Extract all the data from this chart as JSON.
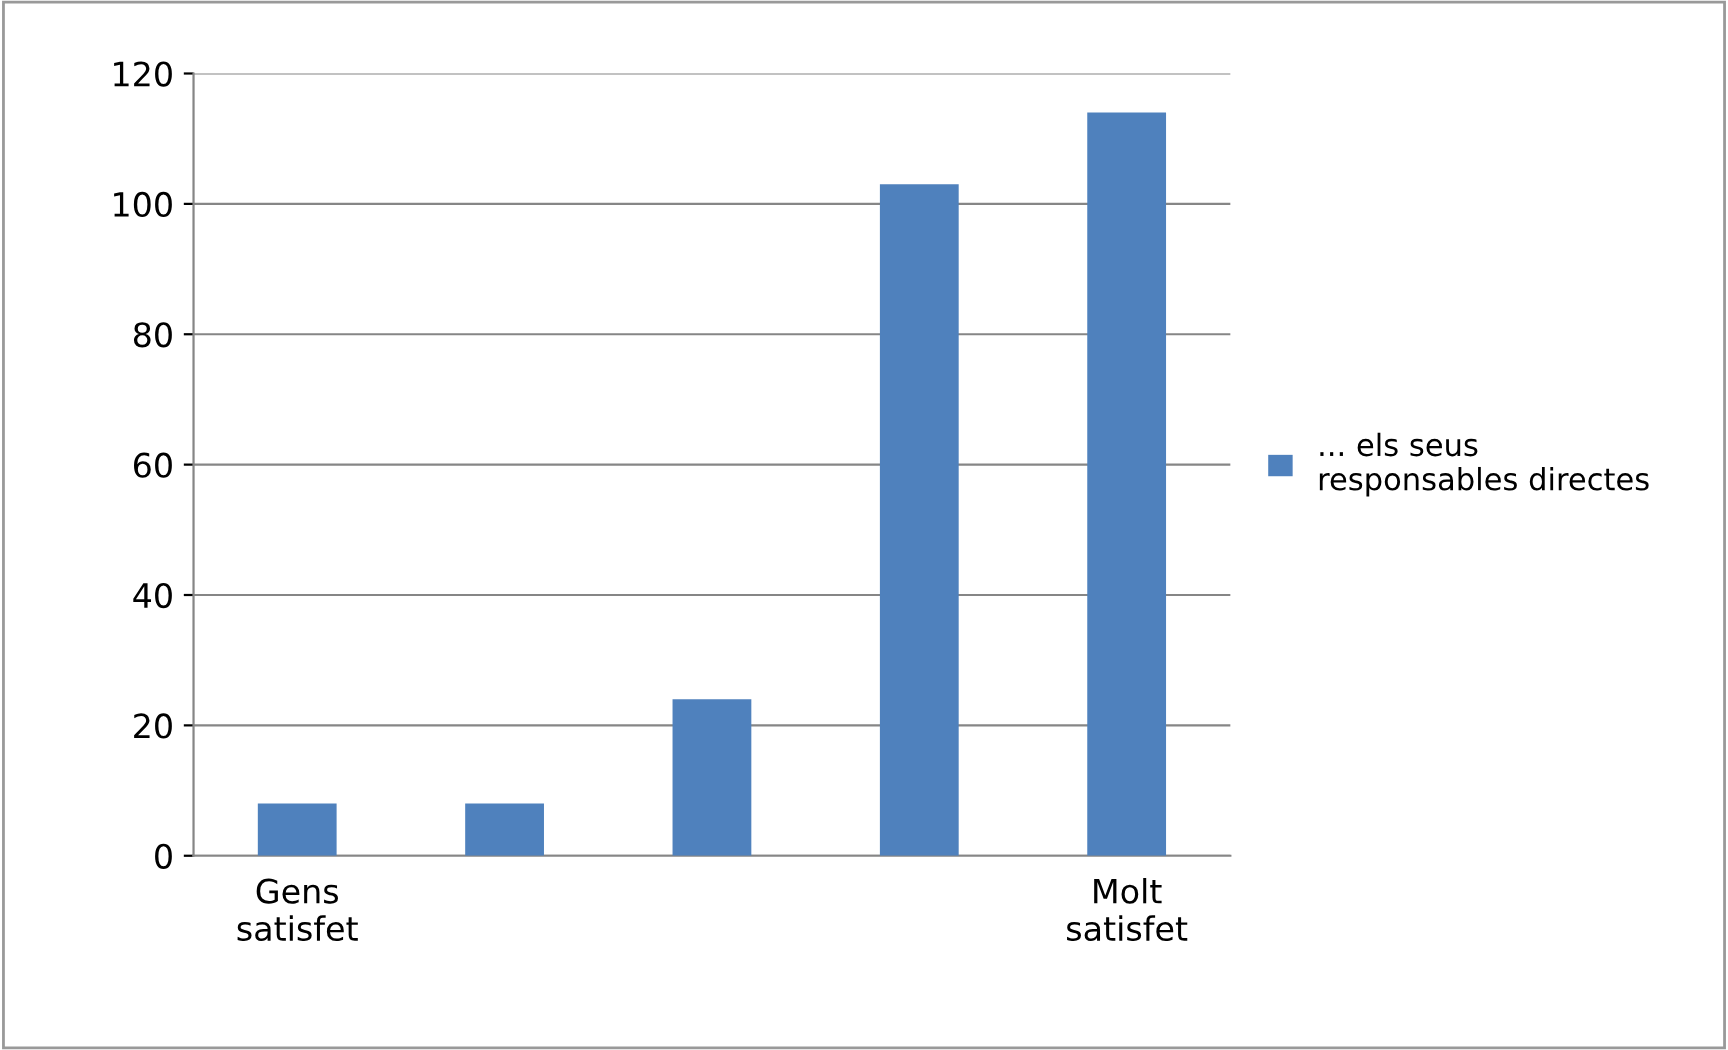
{
  "chart_data": {
    "type": "bar",
    "categories": [
      "Gens\nsatisfet",
      null,
      null,
      null,
      "Molt\nsatisfet"
    ],
    "series": [
      {
        "name": "... els seus\nresponsables directes",
        "color": "#4f81bd",
        "values": [
          8,
          8,
          24,
          103,
          114
        ]
      }
    ],
    "ylim": [
      0,
      120
    ],
    "yticks": [
      0,
      20,
      40,
      60,
      80,
      100,
      120
    ],
    "grid": "y",
    "legend": "right"
  }
}
